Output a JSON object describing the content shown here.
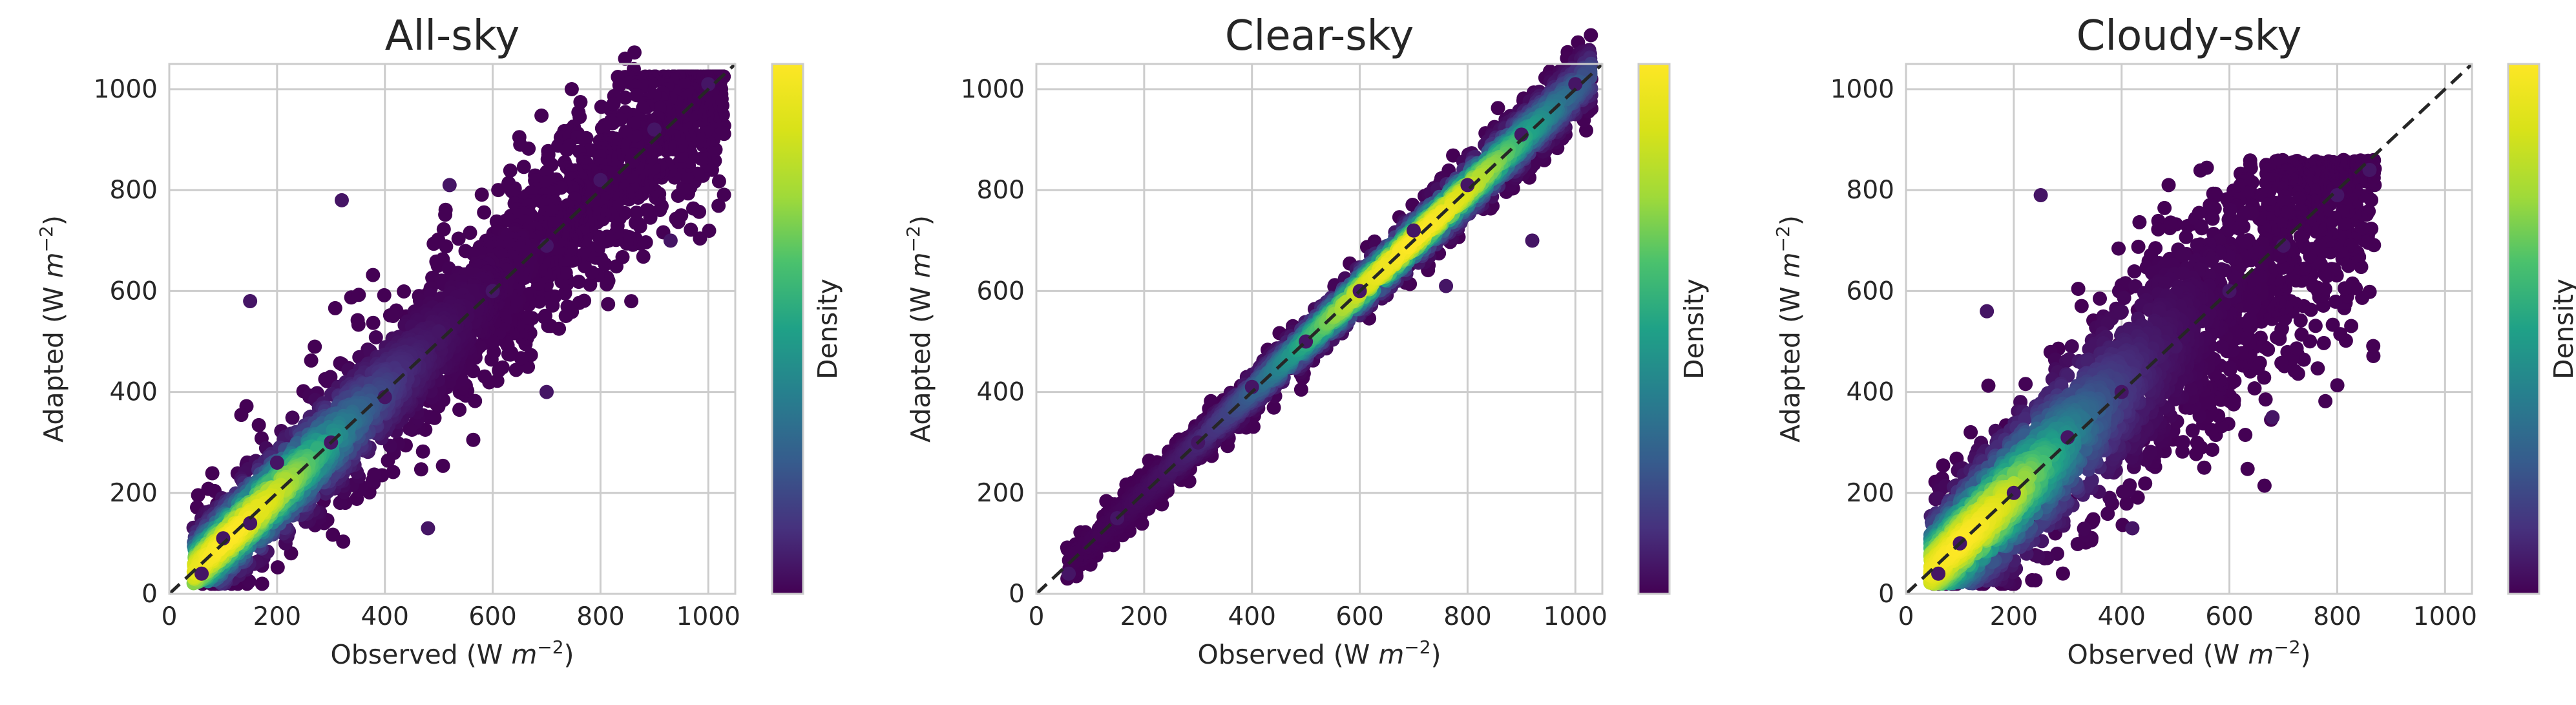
{
  "figure": {
    "colormap": "viridis",
    "background": "#ffffff",
    "grid_color": "#cccccc",
    "reference_line_color": "#262626"
  },
  "chart_data": [
    {
      "type": "scatter",
      "title": "All-sky",
      "xlabel": "Observed (W m⁻²)",
      "ylabel": "Adapted (W m⁻²)",
      "xlim": [
        0,
        1050
      ],
      "ylim": [
        0,
        1050
      ],
      "xticks": [
        0,
        200,
        400,
        600,
        800,
        1000
      ],
      "yticks": [
        0,
        200,
        400,
        600,
        800,
        1000
      ],
      "grid": true,
      "reference_line": "y = x",
      "colorbar_label": "Density",
      "x_range_points": [
        45,
        1030
      ],
      "density_peak_near": [
        110,
        120
      ],
      "spread_description": "points cluster tightly along 1:1 line with wide scatter below 900",
      "sample_points": [
        {
          "x": 60,
          "y": 40
        },
        {
          "x": 100,
          "y": 110
        },
        {
          "x": 150,
          "y": 140
        },
        {
          "x": 200,
          "y": 260
        },
        {
          "x": 300,
          "y": 300
        },
        {
          "x": 400,
          "y": 390
        },
        {
          "x": 500,
          "y": 520
        },
        {
          "x": 600,
          "y": 600
        },
        {
          "x": 700,
          "y": 690
        },
        {
          "x": 800,
          "y": 820
        },
        {
          "x": 900,
          "y": 920
        },
        {
          "x": 1000,
          "y": 1010
        },
        {
          "x": 150,
          "y": 580
        },
        {
          "x": 320,
          "y": 780
        },
        {
          "x": 520,
          "y": 810
        },
        {
          "x": 480,
          "y": 130
        },
        {
          "x": 700,
          "y": 400
        },
        {
          "x": 930,
          "y": 700
        }
      ]
    },
    {
      "type": "scatter",
      "title": "Clear-sky",
      "xlabel": "Observed (W m⁻²)",
      "ylabel": "Adapted (W m⁻²)",
      "xlim": [
        0,
        1050
      ],
      "ylim": [
        0,
        1050
      ],
      "xticks": [
        0,
        200,
        400,
        600,
        800,
        1000
      ],
      "yticks": [
        0,
        200,
        400,
        600,
        800,
        1000
      ],
      "grid": true,
      "reference_line": "y = x",
      "colorbar_label": "Density",
      "x_range_points": [
        55,
        1030
      ],
      "density_peak_near": [
        700,
        720
      ],
      "spread_description": "narrow band along 1:1 line",
      "sample_points": [
        {
          "x": 60,
          "y": 40
        },
        {
          "x": 150,
          "y": 150
        },
        {
          "x": 300,
          "y": 300
        },
        {
          "x": 400,
          "y": 410
        },
        {
          "x": 500,
          "y": 500
        },
        {
          "x": 600,
          "y": 600
        },
        {
          "x": 700,
          "y": 720
        },
        {
          "x": 800,
          "y": 810
        },
        {
          "x": 900,
          "y": 910
        },
        {
          "x": 1000,
          "y": 1010
        },
        {
          "x": 920,
          "y": 700
        },
        {
          "x": 760,
          "y": 610
        }
      ]
    },
    {
      "type": "scatter",
      "title": "Cloudy-sky",
      "xlabel": "Observed (W m⁻²)",
      "ylabel": "Adapted (W m⁻²)",
      "xlim": [
        0,
        1050
      ],
      "ylim": [
        0,
        1050
      ],
      "xticks": [
        0,
        200,
        400,
        600,
        800,
        1000
      ],
      "yticks": [
        0,
        200,
        400,
        600,
        800,
        1000
      ],
      "grid": true,
      "reference_line": "y = x",
      "colorbar_label": "Density",
      "x_range_points": [
        45,
        870
      ],
      "density_peak_near": [
        100,
        110
      ],
      "spread_description": "broad cloud around 1:1 line, max ~860",
      "sample_points": [
        {
          "x": 60,
          "y": 40
        },
        {
          "x": 100,
          "y": 100
        },
        {
          "x": 200,
          "y": 200
        },
        {
          "x": 300,
          "y": 310
        },
        {
          "x": 400,
          "y": 400
        },
        {
          "x": 500,
          "y": 490
        },
        {
          "x": 600,
          "y": 600
        },
        {
          "x": 700,
          "y": 690
        },
        {
          "x": 800,
          "y": 790
        },
        {
          "x": 860,
          "y": 840
        },
        {
          "x": 250,
          "y": 790
        },
        {
          "x": 420,
          "y": 130
        },
        {
          "x": 680,
          "y": 350
        },
        {
          "x": 150,
          "y": 560
        }
      ]
    }
  ]
}
